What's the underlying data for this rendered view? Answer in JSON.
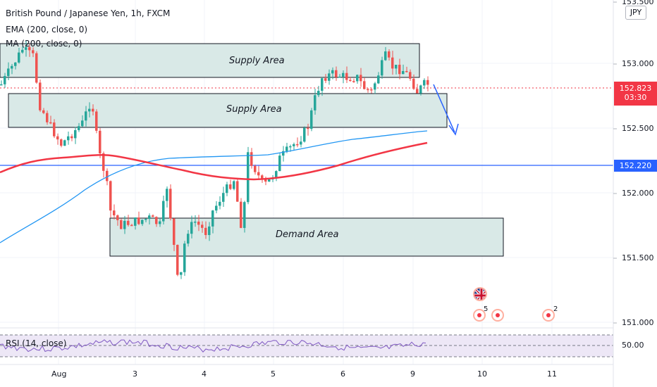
{
  "legend": {
    "symbol": "British Pound / Japanese Yen, 1h, FXCM",
    "ema": "EMA (200, close, 0)",
    "ma": "MA (200, close, 0)"
  },
  "zones": {
    "supply_top": "Supply Area",
    "supply_mid": "Supply Area",
    "demand": "Demand Area"
  },
  "price_axis": {
    "currency": "JPY",
    "ticks": [
      "153.500",
      "153.000",
      "152.500",
      "152.000",
      "151.500",
      "151.000"
    ],
    "rsi_tick": "50.00",
    "current_price": "152.823",
    "countdown": "03:30",
    "level_price": "152.220"
  },
  "time_axis": {
    "ticks": [
      "Aug",
      "3",
      "4",
      "5",
      "6",
      "9",
      "10",
      "11"
    ]
  },
  "rsi": {
    "label": "RSI (14, close)"
  },
  "events": {
    "count_a": "5",
    "count_b": "2"
  },
  "colors": {
    "up": "#26a69a",
    "down": "#ef5350",
    "ema": "#2196f3",
    "ma": "#f23645",
    "zone_fill": "#d9e9e7",
    "level": "#2962ff",
    "current": "#f23645"
  },
  "chart_data": {
    "type": "candlestick",
    "price_range": [
      150.95,
      153.5
    ],
    "level": 152.22,
    "current": 152.823,
    "zones": [
      {
        "name": "Supply Area",
        "top": 153.17,
        "bottom": 152.93
      },
      {
        "name": "Supply Area",
        "top": 152.79,
        "bottom": 152.53
      },
      {
        "name": "Demand Area",
        "top": 151.8,
        "bottom": 151.52
      }
    ]
  }
}
